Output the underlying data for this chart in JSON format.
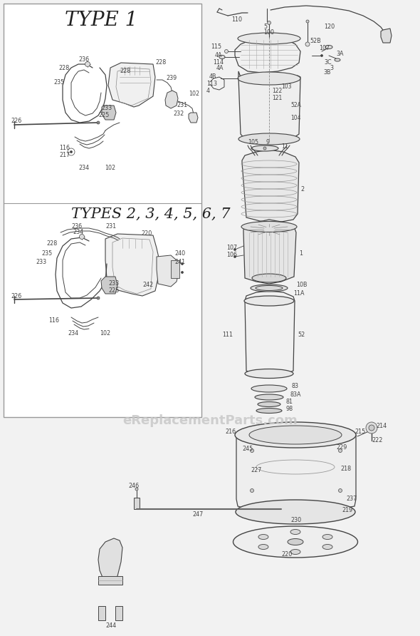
{
  "bg_color": "#f2f2f2",
  "box_bg": "#ffffff",
  "line_color": "#444444",
  "label_color": "#444444",
  "watermark": "eReplacementParts.com",
  "watermark_color": "#c8c8c8",
  "type1_title": "TYPE 1",
  "type2_title": "TYPES 2, 3, 4, 5, 6, 7",
  "fig_width": 5.9,
  "fig_height": 8.92,
  "dpi": 100
}
